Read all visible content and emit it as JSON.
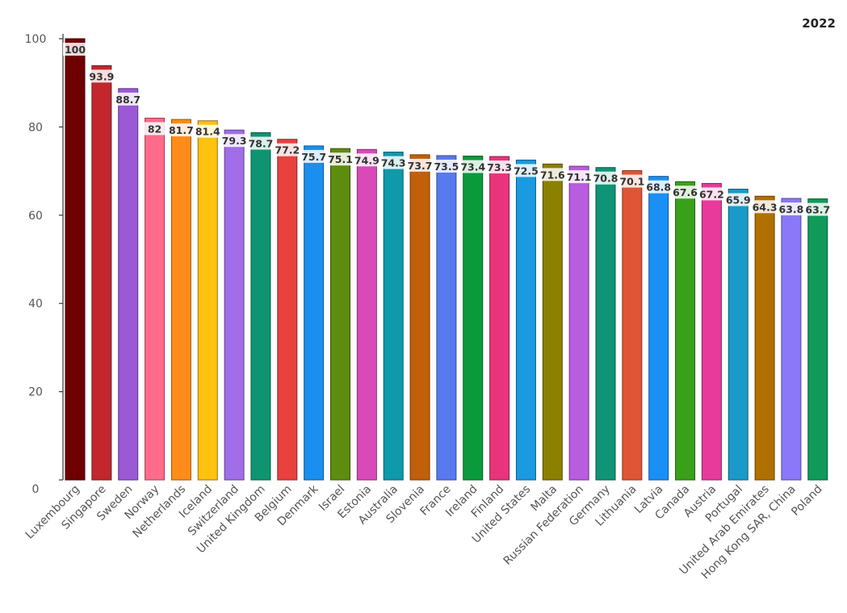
{
  "chart_data": {
    "type": "bar",
    "title": "2022",
    "xlabel": "",
    "ylabel": "",
    "ylim": [
      0,
      100
    ],
    "yticks": [
      0,
      20,
      40,
      60,
      80,
      100
    ],
    "grid": false,
    "categories": [
      "Luxembourg",
      "Singapore",
      "Sweden",
      "Norway",
      "Netherlands",
      "Iceland",
      "Switzerland",
      "United Kingdom",
      "Belgium",
      "Denmark",
      "Israel",
      "Estonia",
      "Australia",
      "Slovenia",
      "France",
      "Ireland",
      "Finland",
      "United States",
      "Malta",
      "Russian Federation",
      "Germany",
      "Lithuania",
      "Latvia",
      "Canada",
      "Austria",
      "Portugal",
      "United Arab Emirates",
      "Hong Kong SAR, China",
      "Poland"
    ],
    "values": [
      100,
      93.9,
      88.7,
      82,
      81.7,
      81.4,
      79.3,
      78.7,
      77.2,
      75.7,
      75.1,
      74.9,
      74.3,
      73.7,
      73.5,
      73.4,
      73.3,
      72.5,
      71.6,
      71.1,
      70.8,
      70.1,
      68.8,
      67.6,
      67.2,
      65.9,
      64.3,
      63.8,
      63.7
    ],
    "labels": [
      "100",
      "93.9",
      "88.7",
      "82",
      "81.7",
      "81.4",
      "79.3",
      "78.7",
      "77.2",
      "75.7",
      "75.1",
      "74.9",
      "74.3",
      "73.7",
      "73.5",
      "73.4",
      "73.3",
      "72.5",
      "71.6",
      "71.1",
      "70.8",
      "70.1",
      "68.8",
      "67.6",
      "67.2",
      "65.9",
      "64.3",
      "63.8",
      "63.7"
    ],
    "colors": [
      "#6e0000",
      "#c1272d",
      "#9b59d6",
      "#ff6b8a",
      "#ff8c1a",
      "#ffc20e",
      "#a06ee8",
      "#0f9471",
      "#e8413e",
      "#1a8ff0",
      "#5e8c0f",
      "#d94ab8",
      "#0e9aab",
      "#c25f0a",
      "#5879f0",
      "#0a9a3c",
      "#e8347a",
      "#1a9ae0",
      "#8c8000",
      "#b85ce0",
      "#0f9477",
      "#e05535",
      "#1a8ff5",
      "#3aa01a",
      "#e83a9a",
      "#1a9ac8",
      "#b07000",
      "#8a78f8",
      "#0f9a5a"
    ]
  }
}
